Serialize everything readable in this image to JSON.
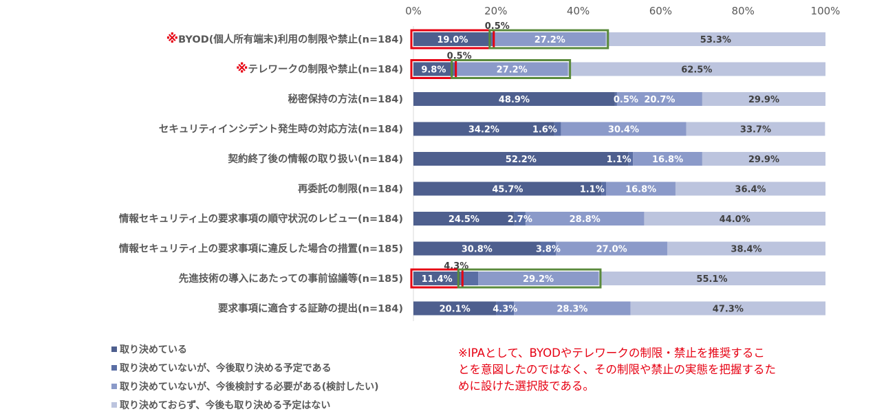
{
  "chart_data": {
    "type": "bar",
    "orientation": "horizontal",
    "stacked": true,
    "x_ticks": [
      "0%",
      "20%",
      "40%",
      "60%",
      "80%",
      "100%"
    ],
    "xlim": [
      0,
      100
    ],
    "categories": [
      {
        "mark": "※",
        "label": "BYOD(個人所有端末)利用の制限や禁止(n=184)"
      },
      {
        "mark": "※",
        "label": "テレワークの制限や禁止(n=184)"
      },
      {
        "mark": "",
        "label": "秘密保持の方法(n=184)"
      },
      {
        "mark": "",
        "label": "セキュリティインシデント発生時の対応方法(n=184)"
      },
      {
        "mark": "",
        "label": "契約終了後の情報の取り扱い(n=184)"
      },
      {
        "mark": "",
        "label": "再委託の制限(n=184)"
      },
      {
        "mark": "",
        "label": "情報セキュリティ上の要求事項の順守状況のレビュー(n=184)"
      },
      {
        "mark": "",
        "label": "情報セキュリティ上の要求事項に違反した場合の措置(n=185)"
      },
      {
        "mark": "",
        "label": "先進技術の導入にあたっての事前協議等(n=185)"
      },
      {
        "mark": "",
        "label": "要求事項に適合する証跡の提出(n=184)"
      }
    ],
    "series": [
      {
        "name": "取り決めている",
        "color": "#4e5f8e",
        "values": [
          19.0,
          9.8,
          48.9,
          34.2,
          52.2,
          45.7,
          24.5,
          30.8,
          11.4,
          20.1
        ],
        "labels": [
          "19.0%",
          "9.8%",
          "48.9%",
          "34.2%",
          "52.2%",
          "45.7%",
          "24.5%",
          "30.8%",
          "11.4%",
          "20.1%"
        ]
      },
      {
        "name": "取り決めていないが、今後取り決める予定である",
        "color": "#5a6ea4",
        "values": [
          0.5,
          0.5,
          0.5,
          1.6,
          1.1,
          1.1,
          2.7,
          3.8,
          4.3,
          4.3
        ],
        "labels": [
          "0.5%",
          "0.5%",
          "0.5%",
          "1.6%",
          "1.1%",
          "1.1%",
          "2.7%",
          "3.8%",
          "4.3%",
          "4.3%"
        ]
      },
      {
        "name": "取り決めていないが、今後検討する必要がある(検討したい)",
        "color": "#8b9ac9",
        "values": [
          27.2,
          27.2,
          20.7,
          30.4,
          16.8,
          16.8,
          28.8,
          27.0,
          29.2,
          28.3
        ],
        "labels": [
          "27.2%",
          "27.2%",
          "20.7%",
          "30.4%",
          "16.8%",
          "16.8%",
          "28.8%",
          "27.0%",
          "29.2%",
          "28.3%"
        ]
      },
      {
        "name": "取り決めておらず、今後も取り決める予定はない",
        "color": "#bcc4de",
        "values": [
          53.3,
          62.5,
          29.9,
          33.7,
          29.9,
          36.4,
          44.0,
          38.4,
          55.1,
          47.3
        ],
        "labels": [
          "53.3%",
          "62.5%",
          "29.9%",
          "33.7%",
          "29.9%",
          "36.4%",
          "44.0%",
          "38.4%",
          "55.1%",
          "47.3%"
        ]
      }
    ],
    "highlights": [
      {
        "category_index": 0,
        "series": [
          0
        ],
        "color": "#e60012"
      },
      {
        "category_index": 0,
        "series": [
          1,
          2
        ],
        "color": "#5a8a3c"
      },
      {
        "category_index": 1,
        "series": [
          0
        ],
        "color": "#e60012"
      },
      {
        "category_index": 1,
        "series": [
          1,
          2
        ],
        "color": "#5a8a3c"
      },
      {
        "category_index": 8,
        "series": [
          0
        ],
        "color": "#e60012"
      },
      {
        "category_index": 8,
        "series": [
          1,
          2
        ],
        "color": "#5a8a3c"
      }
    ],
    "legend_position": "bottom-left",
    "grid": false
  },
  "note": "※IPAとして、BYODやテレワークの制限・禁止を推奨するこ\nとを意図したのではなく、その制限や禁止の実態を把握するた\nめに設けた選択肢である。"
}
